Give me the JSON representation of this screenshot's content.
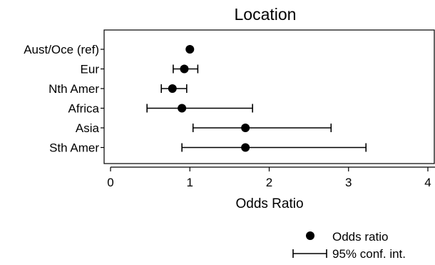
{
  "chart_data": {
    "type": "scatter",
    "title": "Location",
    "xlabel": "Odds Ratio",
    "ylabel": "",
    "xlim": [
      0,
      4
    ],
    "x_ticks": [
      0,
      1,
      2,
      3,
      4
    ],
    "grid": false,
    "legend_position": "bottom-right",
    "categories": [
      "Aust/Oce (ref)",
      "Eur",
      "Nth Amer",
      "Africa",
      "Asia",
      "Sth Amer"
    ],
    "series": [
      {
        "name": "Odds ratio",
        "values": [
          1.0,
          0.93,
          0.78,
          0.9,
          1.7,
          1.7
        ],
        "ci_low": [
          1.0,
          0.79,
          0.64,
          0.46,
          1.04,
          0.9
        ],
        "ci_high": [
          1.0,
          1.1,
          0.96,
          1.79,
          2.78,
          3.22
        ]
      }
    ],
    "legend": {
      "point_label": "Odds ratio",
      "interval_label": "95% conf. int."
    },
    "colors": {
      "marker": "#000000",
      "axis": "#000000"
    }
  }
}
